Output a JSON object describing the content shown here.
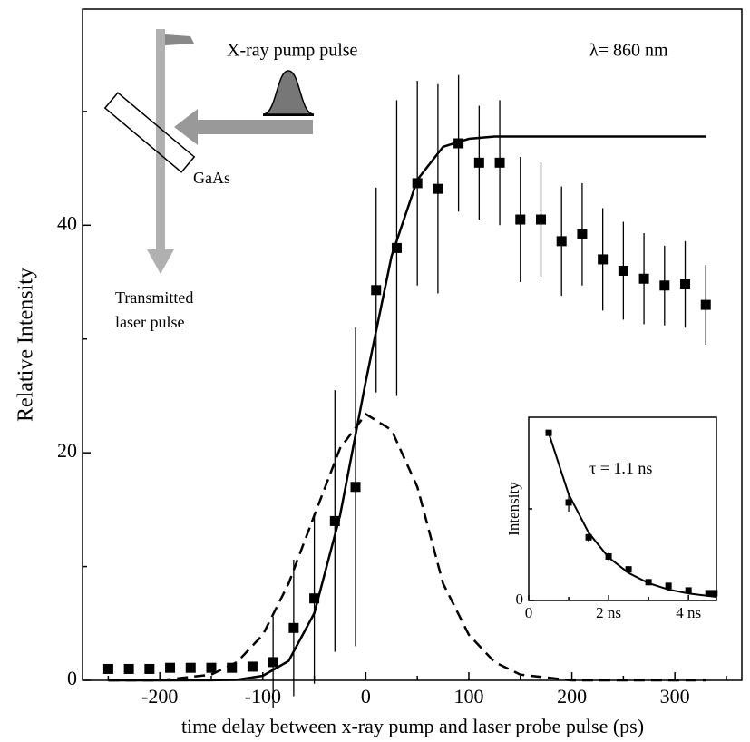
{
  "chart_data": [
    {
      "type": "scatter",
      "xlabel": "time delay between x-ray pump and laser probe pulse (ps)",
      "ylabel": "Relative Intensity",
      "annotations": [
        "X-ray pump pulse",
        "λ= 860 nm",
        "GaAs",
        "Transmitted",
        "laser pulse"
      ],
      "xlim": [
        -275,
        365
      ],
      "ylim": [
        0,
        59
      ],
      "xticks": [
        -200,
        -100,
        0,
        100,
        200,
        300
      ],
      "xminorticks": [
        -250,
        -150,
        -50,
        50,
        150,
        250,
        350
      ],
      "yticks": [
        0,
        20,
        40
      ],
      "yminorticks": [
        10,
        30,
        50
      ],
      "series": [
        {
          "kind": "points",
          "color": "#000000",
          "x": [
            -250,
            -230,
            -210,
            -190,
            -170,
            -150,
            -130,
            -110,
            -90,
            -70,
            -50,
            -30,
            -10,
            10,
            30,
            50,
            70,
            90,
            110,
            130,
            150,
            170,
            190,
            210,
            230,
            250,
            270,
            290,
            310,
            330
          ],
          "values": [
            1.0,
            1.0,
            1.0,
            1.1,
            1.1,
            1.1,
            1.1,
            1.2,
            1.6,
            4.6,
            7.2,
            14,
            17,
            34.3,
            38,
            43.7,
            43.2,
            47.2,
            45.5,
            45.5,
            40.5,
            40.5,
            38.6,
            39.2,
            37,
            36,
            35.3,
            34.7,
            34.8,
            33
          ],
          "errors": [
            null,
            null,
            null,
            null,
            null,
            null,
            null,
            null,
            4,
            6,
            7.5,
            11.5,
            14,
            9,
            13,
            9,
            9.2,
            6,
            5,
            5.5,
            5.5,
            5,
            4.8,
            4.5,
            4.5,
            4.3,
            4,
            3.5,
            3.8,
            3.5
          ]
        },
        {
          "kind": "line",
          "style": "solid",
          "color": "#000000",
          "x": [
            -250,
            -200,
            -150,
            -125,
            -100,
            -75,
            -50,
            -25,
            0,
            25,
            50,
            75,
            100,
            125,
            150,
            330
          ],
          "values": [
            0,
            0,
            0.01,
            0.05,
            0.4,
            1.7,
            5.9,
            14.5,
            26.3,
            37.3,
            44.0,
            46.9,
            47.6,
            47.8,
            47.8,
            47.8
          ]
        },
        {
          "kind": "line",
          "style": "dashed",
          "color": "#000000",
          "x": [
            -250,
            -200,
            -150,
            -125,
            -100,
            -75,
            -50,
            -25,
            0,
            25,
            50,
            75,
            100,
            125,
            150,
            200,
            330
          ],
          "values": [
            0,
            0,
            0.5,
            1.6,
            4,
            8.5,
            14.5,
            20.4,
            23.4,
            22.0,
            17.0,
            8.5,
            4.0,
            1.6,
            0.5,
            0,
            0
          ]
        }
      ]
    },
    {
      "type": "scatter",
      "ylabel": "Intensity",
      "annotations": [
        "τ = 1.1 ns"
      ],
      "xlim": [
        0,
        4.7
      ],
      "ylim": [
        0,
        2
      ],
      "xticks": [
        0,
        {
          "value": 2,
          "label": "2 ns"
        },
        {
          "value": 4,
          "label": "4 ns"
        }
      ],
      "xminorticks": [
        1,
        3
      ],
      "yticks": [
        0
      ],
      "yminorticks": [
        1
      ],
      "series": [
        {
          "kind": "points",
          "color": "#000000",
          "x": [
            0.5,
            1.0,
            1.5,
            2.0,
            2.5,
            3.0,
            3.5,
            4.0,
            4.5,
            4.65
          ],
          "values": [
            1.83,
            1.07,
            0.69,
            0.48,
            0.34,
            0.2,
            0.16,
            0.11,
            0.08,
            0.08
          ],
          "errors": [
            null,
            0.1,
            0.05,
            0.04,
            null,
            null,
            null,
            null,
            null,
            null
          ]
        },
        {
          "kind": "line",
          "style": "solid",
          "color": "#000000",
          "x": [
            0.5,
            1.0,
            1.5,
            2.0,
            2.5,
            3.0,
            3.5,
            4.0,
            4.7
          ],
          "values": [
            1.83,
            1.16,
            0.74,
            0.47,
            0.3,
            0.19,
            0.12,
            0.076,
            0.04
          ]
        }
      ]
    }
  ]
}
